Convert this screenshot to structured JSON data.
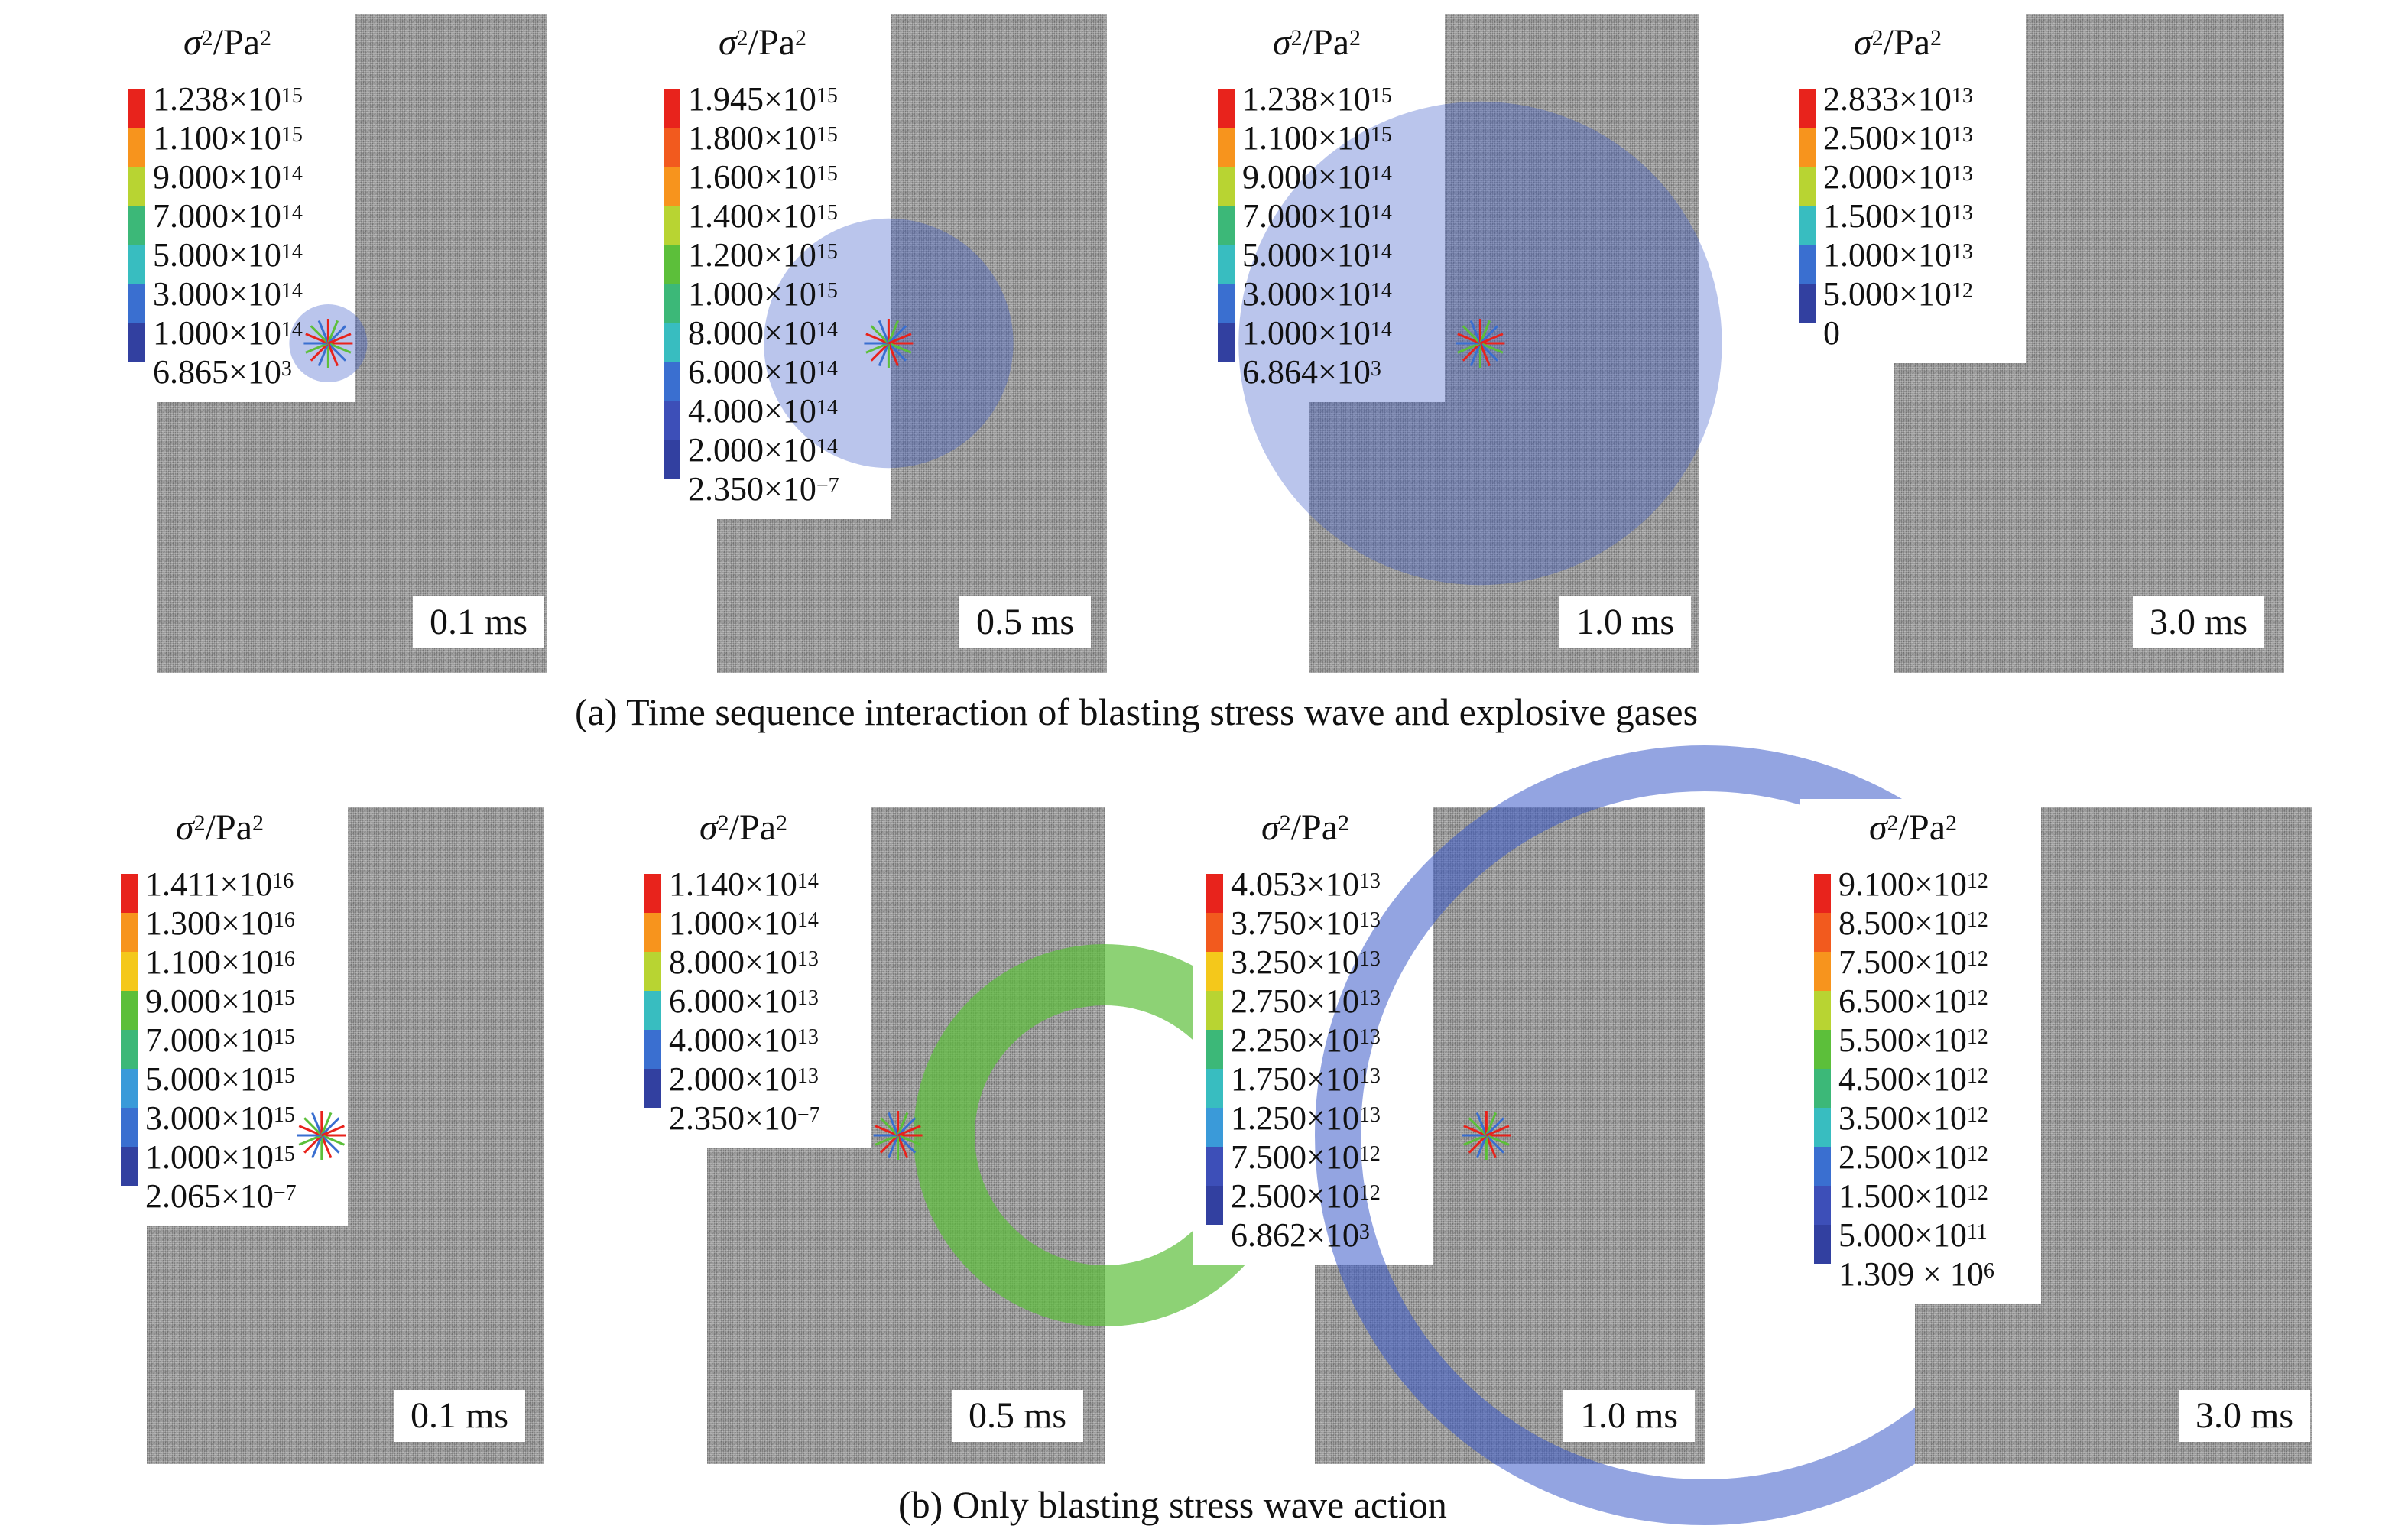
{
  "legend_title_base": "σ",
  "legend_title_exp": "2",
  "legend_title_unit": "/Pa",
  "legend_title_unit_exp": "2",
  "colors": {
    "background": "#ffffff",
    "rock": "#9a9a9a",
    "scale": [
      "#e8231c",
      "#f25a1e",
      "#f7941d",
      "#f4c81b",
      "#b8d432",
      "#5cbf3a",
      "#3cb878",
      "#38bdc0",
      "#3a9ad9",
      "#3a6fd0",
      "#3d4fb8",
      "#3240a0"
    ]
  },
  "rows": [
    {
      "caption": "(a) Time sequence interaction of blasting stress wave and explosive gases",
      "panels": [
        {
          "time": "0.1 ms",
          "legend": [
            [
              "1.238×10",
              "15"
            ],
            [
              "1.100×10",
              "15"
            ],
            [
              "9.000×10",
              "14"
            ],
            [
              "7.000×10",
              "14"
            ],
            [
              "5.000×10",
              "14"
            ],
            [
              "3.000×10",
              "14"
            ],
            [
              "1.000×10",
              "14"
            ],
            [
              "6.865×10",
              "3"
            ]
          ]
        },
        {
          "time": "0.5 ms",
          "legend": [
            [
              "1.945×10",
              "15"
            ],
            [
              "1.800×10",
              "15"
            ],
            [
              "1.600×10",
              "15"
            ],
            [
              "1.400×10",
              "15"
            ],
            [
              "1.200×10",
              "15"
            ],
            [
              "1.000×10",
              "15"
            ],
            [
              "8.000×10",
              "14"
            ],
            [
              "6.000×10",
              "14"
            ],
            [
              "4.000×10",
              "14"
            ],
            [
              "2.000×10",
              "14"
            ],
            [
              "2.350×10",
              "−7"
            ]
          ]
        },
        {
          "time": "1.0 ms",
          "legend": [
            [
              "1.238×10",
              "15"
            ],
            [
              "1.100×10",
              "15"
            ],
            [
              "9.000×10",
              "14"
            ],
            [
              "7.000×10",
              "14"
            ],
            [
              "5.000×10",
              "14"
            ],
            [
              "3.000×10",
              "14"
            ],
            [
              "1.000×10",
              "14"
            ],
            [
              "6.864×10",
              "3"
            ]
          ]
        },
        {
          "time": "3.0 ms",
          "legend": [
            [
              "2.833×10",
              "13"
            ],
            [
              "2.500×10",
              "13"
            ],
            [
              "2.000×10",
              "13"
            ],
            [
              "1.500×10",
              "13"
            ],
            [
              "1.000×10",
              "13"
            ],
            [
              "5.000×10",
              "12"
            ],
            [
              "0",
              ""
            ]
          ]
        }
      ]
    },
    {
      "caption": "(b) Only blasting stress wave action",
      "panels": [
        {
          "time": "0.1 ms",
          "legend": [
            [
              "1.411×10",
              "16"
            ],
            [
              "1.300×10",
              "16"
            ],
            [
              "1.100×10",
              "16"
            ],
            [
              "9.000×10",
              "15"
            ],
            [
              "7.000×10",
              "15"
            ],
            [
              "5.000×10",
              "15"
            ],
            [
              "3.000×10",
              "15"
            ],
            [
              "1.000×10",
              "15"
            ],
            [
              "2.065×10",
              "−7"
            ]
          ]
        },
        {
          "time": "0.5 ms",
          "legend": [
            [
              "1.140×10",
              "14"
            ],
            [
              "1.000×10",
              "14"
            ],
            [
              "8.000×10",
              "13"
            ],
            [
              "6.000×10",
              "13"
            ],
            [
              "4.000×10",
              "13"
            ],
            [
              "2.000×10",
              "13"
            ],
            [
              "2.350×10",
              "−7"
            ]
          ]
        },
        {
          "time": "1.0 ms",
          "legend": [
            [
              "4.053×10",
              "13"
            ],
            [
              "3.750×10",
              "13"
            ],
            [
              "3.250×10",
              "13"
            ],
            [
              "2.750×10",
              "13"
            ],
            [
              "2.250×10",
              "13"
            ],
            [
              "1.750×10",
              "13"
            ],
            [
              "1.250×10",
              "13"
            ],
            [
              "7.500×10",
              "12"
            ],
            [
              "2.500×10",
              "12"
            ],
            [
              "6.862×10",
              "3"
            ]
          ]
        },
        {
          "time": "3.0 ms",
          "legend": [
            [
              "9.100×10",
              "12"
            ],
            [
              "8.500×10",
              "12"
            ],
            [
              "7.500×10",
              "12"
            ],
            [
              "6.500×10",
              "12"
            ],
            [
              "5.500×10",
              "12"
            ],
            [
              "4.500×10",
              "12"
            ],
            [
              "3.500×10",
              "12"
            ],
            [
              "2.500×10",
              "12"
            ],
            [
              "1.500×10",
              "12"
            ],
            [
              "5.000×10",
              "11"
            ],
            [
              "1.309 × 10",
              "6"
            ]
          ]
        }
      ]
    }
  ]
}
